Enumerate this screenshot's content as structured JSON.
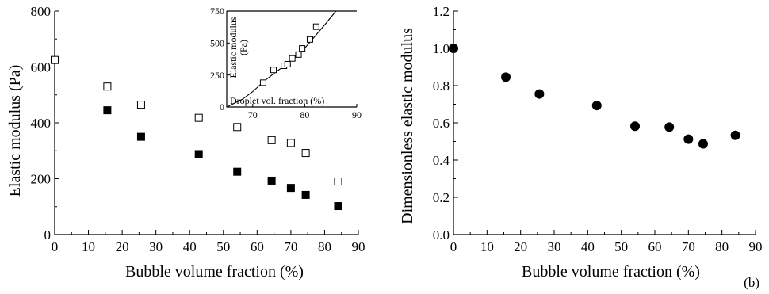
{
  "panel_label_b": "(b)",
  "chart_data": [
    {
      "type": "scatter",
      "title": "",
      "xlabel": "Bubble volume fraction (%)",
      "ylabel": "Elastic modulus (Pa)",
      "xlim": [
        0,
        90
      ],
      "ylim": [
        0,
        800
      ],
      "xticks": [
        0,
        10,
        20,
        30,
        40,
        50,
        60,
        70,
        80,
        90
      ],
      "yticks": [
        0,
        200,
        400,
        600,
        800
      ],
      "grid": false,
      "legend": "none",
      "series": [
        {
          "marker": "open-square",
          "x": [
            0,
            15.6,
            25.6,
            42.7,
            54.1,
            64.3,
            70,
            74.4,
            84
          ],
          "y": [
            625,
            530,
            465,
            418,
            385,
            338,
            328,
            292,
            190
          ]
        },
        {
          "marker": "filled-square",
          "x": [
            15.6,
            25.6,
            42.7,
            54.1,
            64.3,
            70,
            74.4,
            84
          ],
          "y": [
            445,
            350,
            288,
            225,
            193,
            167,
            142,
            102
          ]
        }
      ],
      "inset": {
        "type": "scatter",
        "xlabel": "Droplet vol. fraction (%)",
        "ylabel": "Elastic modulus\n(Pa)",
        "xlim": [
          65,
          90
        ],
        "ylim": [
          0,
          750
        ],
        "xticks": [
          70,
          80,
          90
        ],
        "yticks": [
          0,
          250,
          500,
          750
        ],
        "series": [
          {
            "marker": "open-square",
            "x": [
              72,
              74,
              76,
              76.7,
              77.6,
              78.8,
              79.5,
              81,
              82.2
            ],
            "y": [
              190,
              290,
              322,
              335,
              380,
              410,
              458,
              528,
              628
            ]
          }
        ],
        "fit_line": {
          "x": [
            65,
            68,
            70,
            72,
            74,
            76,
            78,
            80,
            82,
            84,
            86
          ],
          "y": [
            0,
            60,
            120,
            195,
            260,
            320,
            390,
            460,
            555,
            650,
            750
          ]
        }
      }
    },
    {
      "type": "scatter",
      "title": "",
      "xlabel": "Bubble volume fraction (%)",
      "ylabel": "Dimensionless elastic modulus",
      "xlim": [
        0,
        90
      ],
      "ylim": [
        0,
        1.2
      ],
      "xticks": [
        0,
        10,
        20,
        30,
        40,
        50,
        60,
        70,
        80,
        90
      ],
      "yticks": [
        "0.0",
        "0.2",
        "0.4",
        "0.6",
        "0.8",
        "1.0",
        "1.2"
      ],
      "grid": false,
      "legend": "none",
      "series": [
        {
          "marker": "filled-circle",
          "x": [
            0,
            15.6,
            25.6,
            42.7,
            54.1,
            64.3,
            70,
            74.4,
            84
          ],
          "y": [
            1.0,
            0.845,
            0.755,
            0.693,
            0.582,
            0.577,
            0.512,
            0.487,
            0.533
          ]
        }
      ]
    }
  ]
}
